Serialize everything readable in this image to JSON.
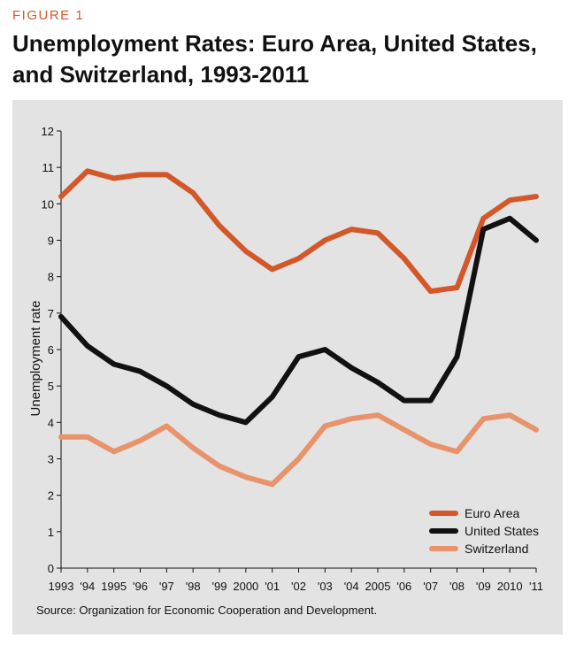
{
  "figure_label": "FIGURE 1",
  "chart_data": {
    "type": "line",
    "title": "Unemployment Rates: Euro Area, United States, and Switzerland, 1993-2011",
    "xlabel": "",
    "ylabel": "Unemployment rate",
    "categories": [
      "1993",
      "'94",
      "1995",
      "'96",
      "'97",
      "'98",
      "'99",
      "2000",
      "'01",
      "'02",
      "'03",
      "'04",
      "2005",
      "'06",
      "'07",
      "'08",
      "'09",
      "2010",
      "'11"
    ],
    "ylim": [
      0,
      12
    ],
    "yticks": [
      0,
      1,
      2,
      3,
      4,
      5,
      6,
      7,
      8,
      9,
      10,
      11,
      12
    ],
    "grid": false,
    "legend_position": "bottom-right",
    "series": [
      {
        "name": "Euro Area",
        "color": "#d4572a",
        "values": [
          10.2,
          10.9,
          10.7,
          10.8,
          10.8,
          10.3,
          9.4,
          8.7,
          8.2,
          8.5,
          9.0,
          9.3,
          9.2,
          8.5,
          7.6,
          7.7,
          9.6,
          10.1,
          10.2
        ]
      },
      {
        "name": "United States",
        "color": "#111111",
        "values": [
          6.9,
          6.1,
          5.6,
          5.4,
          5.0,
          4.5,
          4.2,
          4.0,
          4.7,
          5.8,
          6.0,
          5.5,
          5.1,
          4.6,
          4.6,
          5.8,
          9.3,
          9.6,
          9.0
        ]
      },
      {
        "name": "Switzerland",
        "color": "#e8936b",
        "values": [
          3.6,
          3.6,
          3.2,
          3.5,
          3.9,
          3.3,
          2.8,
          2.5,
          2.3,
          3.0,
          3.9,
          4.1,
          4.2,
          3.8,
          3.4,
          3.2,
          4.1,
          4.2,
          3.8
        ]
      }
    ]
  },
  "source": "Source: Organization for Economic Cooperation and Development."
}
